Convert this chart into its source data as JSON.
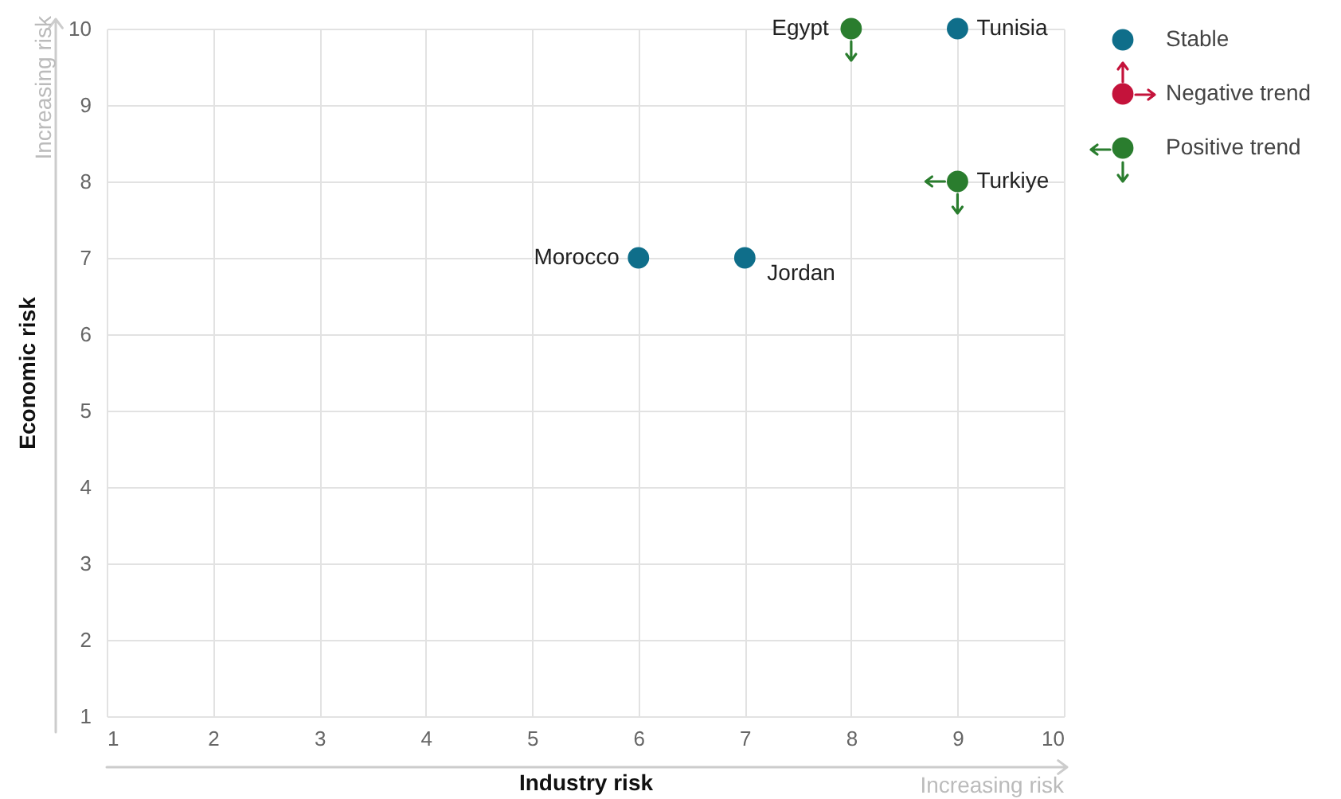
{
  "chart_data": {
    "type": "scatter",
    "xlabel": "Industry risk",
    "ylabel": "Economic risk",
    "xlim": [
      1,
      10
    ],
    "ylim": [
      1,
      10
    ],
    "xticks": [
      {
        "value": 1,
        "label": "1"
      },
      {
        "value": 2,
        "label": "2"
      },
      {
        "value": 3,
        "label": "3"
      },
      {
        "value": 4,
        "label": "4"
      },
      {
        "value": 5,
        "label": "5"
      },
      {
        "value": 6,
        "label": "6"
      },
      {
        "value": 7,
        "label": "7"
      },
      {
        "value": 8,
        "label": "8"
      },
      {
        "value": 9,
        "label": "9"
      },
      {
        "value": 10,
        "label": "10"
      }
    ],
    "yticks": [
      1,
      2,
      3,
      4,
      5,
      6,
      7,
      8,
      9,
      10
    ],
    "grid": true,
    "legend": "top right",
    "marker": "circle",
    "series": [
      {
        "name": "Stable",
        "color": "#0f6e8a",
        "x": [
          6,
          7,
          9
        ],
        "values": [
          7,
          7,
          10
        ]
      },
      {
        "name": "Negative trend",
        "color": "#c4133b"
      },
      {
        "name": "Positive trend",
        "color": "#2a7d2e",
        "x": [
          8,
          9
        ],
        "values": [
          10,
          8
        ]
      }
    ],
    "annotations": [
      "Increasing risk",
      "Increasing risk",
      {
        "text": "Morocco",
        "x": 6,
        "y": 7
      },
      {
        "text": "Jordan",
        "x": 7,
        "y": 7
      },
      {
        "text": "Egypt",
        "x": 8,
        "y": 10
      },
      {
        "text": "Tunisia",
        "x": 9,
        "y": 10
      },
      {
        "text": "Turkiye",
        "x": 9,
        "y": 8
      }
    ]
  }
}
